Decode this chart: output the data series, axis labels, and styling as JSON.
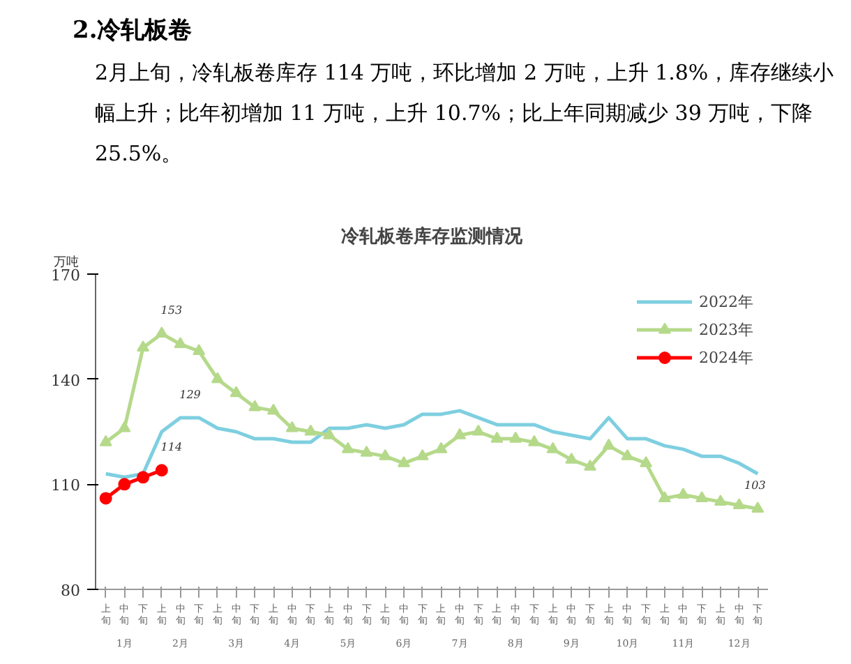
{
  "chart_data": {
    "type": "line",
    "title": "冷轧板卷库存监测情况",
    "subtitle": "2月上旬，冷轧板卷库存 114 万吨，环比增加 2 万吨，上升 1.8%，库存继续小幅上升；比年初增加 11 万吨，上升 10.7%；比上年同期减少 39 万吨，下降 25.5%。",
    "annotations": [
      "2.冷轧板卷",
      "1月",
      "2月",
      "3月",
      "4月",
      "5月",
      "6月",
      "7月",
      "8月",
      "9月",
      "10月",
      "11月",
      "12月"
    ],
    "ylabel": "万吨",
    "categories": [
      "上旬",
      "中旬",
      "下旬",
      "上旬",
      "中旬",
      "下旬",
      "上旬",
      "中旬",
      "下旬",
      "上旬",
      "中旬",
      "下旬",
      "上旬",
      "中旬",
      "下旬",
      "上旬",
      "中旬",
      "下旬",
      "上旬",
      "中旬",
      "下旬",
      "上旬",
      "中旬",
      "下旬",
      "上旬",
      "中旬",
      "下旬",
      "上旬",
      "中旬",
      "下旬",
      "上旬",
      "中旬",
      "下旬",
      "上旬",
      "中旬",
      "下旬"
    ],
    "series": [
      {
        "name": "2022年",
        "color": "#7ecfe0",
        "marker": "none",
        "values": [
          113,
          112,
          113,
          125,
          129,
          129,
          126,
          125,
          123,
          123,
          122,
          122,
          126,
          126,
          127,
          126,
          127,
          130,
          130,
          131,
          129,
          127,
          127,
          127,
          125,
          124,
          123,
          129,
          123,
          123,
          121,
          120,
          118,
          118,
          116,
          113
        ],
        "value_labels": [
          null,
          null,
          null,
          null,
          "129",
          null,
          null,
          null,
          null,
          null,
          null,
          null,
          null,
          null,
          null,
          null,
          null,
          null,
          null,
          null,
          null,
          null,
          null,
          null,
          null,
          null,
          null,
          null,
          null,
          null,
          null,
          null,
          null,
          null,
          null,
          null
        ]
      },
      {
        "name": "2023年",
        "color": "#b5d98a",
        "marker": "triangle",
        "values": [
          122,
          126,
          149,
          153,
          150,
          148,
          140,
          136,
          132,
          131,
          126,
          125,
          124,
          120,
          119,
          118,
          116,
          118,
          120,
          124,
          125,
          123,
          123,
          122,
          120,
          117,
          115,
          121,
          118,
          116,
          106,
          107,
          106,
          105,
          104,
          103
        ],
        "value_labels": [
          null,
          null,
          null,
          "153",
          null,
          null,
          null,
          null,
          null,
          null,
          null,
          null,
          null,
          null,
          null,
          null,
          null,
          null,
          null,
          null,
          null,
          null,
          null,
          null,
          null,
          null,
          null,
          null,
          null,
          null,
          null,
          null,
          null,
          null,
          null,
          "103"
        ]
      },
      {
        "name": "2024年",
        "color": "#ff0000",
        "marker": "circle",
        "values": [
          106,
          110,
          112,
          114,
          null,
          null,
          null,
          null,
          null,
          null,
          null,
          null,
          null,
          null,
          null,
          null,
          null,
          null,
          null,
          null,
          null,
          null,
          null,
          null,
          null,
          null,
          null,
          null,
          null,
          null,
          null,
          null,
          null,
          null,
          null,
          null
        ],
        "value_labels": [
          null,
          null,
          null,
          "114",
          null,
          null,
          null,
          null,
          null,
          null,
          null,
          null,
          null,
          null,
          null,
          null,
          null,
          null,
          null,
          null,
          null,
          null,
          null,
          null,
          null,
          null,
          null,
          null,
          null,
          null,
          null,
          null,
          null,
          null,
          null,
          null
        ]
      }
    ],
    "ylim": [
      80,
      170
    ],
    "yticks": [
      80,
      110,
      140,
      170
    ],
    "legend": "top right"
  }
}
